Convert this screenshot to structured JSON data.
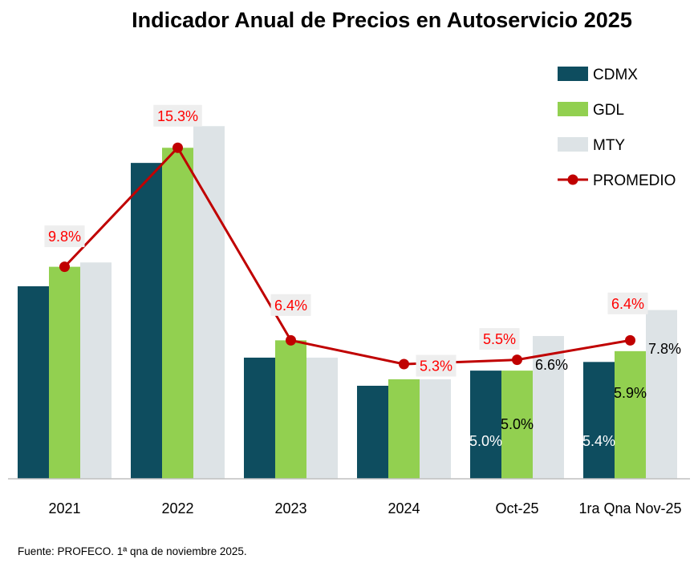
{
  "chart_data": {
    "type": "bar",
    "title": "Indicador Anual de Precios en Autoservicio 2025",
    "categories": [
      "2021",
      "2022",
      "2023",
      "2024",
      "Oct-25",
      "1ra Qna Nov-25"
    ],
    "series": [
      {
        "name": "CDMX",
        "type": "bar",
        "color": "#0e4d5f",
        "values": [
          8.9,
          14.6,
          5.6,
          4.3,
          5.0,
          5.4
        ],
        "labels": [
          null,
          null,
          null,
          null,
          "5.0%",
          "5.4%"
        ]
      },
      {
        "name": "GDL",
        "type": "bar",
        "color": "#92d050",
        "values": [
          9.8,
          15.3,
          6.4,
          4.6,
          5.0,
          5.9
        ],
        "labels": [
          null,
          null,
          null,
          null,
          "5.0%",
          "5.9%"
        ]
      },
      {
        "name": "MTY",
        "type": "bar",
        "color": "#dde3e6",
        "values": [
          10.0,
          16.3,
          5.6,
          4.6,
          6.6,
          7.8
        ],
        "labels": [
          null,
          null,
          null,
          null,
          "6.6%",
          "7.8%"
        ]
      },
      {
        "name": "PROMEDIO",
        "type": "line",
        "color": "#c00000",
        "values": [
          9.8,
          15.3,
          6.4,
          5.3,
          5.5,
          6.4
        ],
        "labels": [
          "9.8%",
          "15.3%",
          "6.4%",
          "5.3%",
          "5.5%",
          "6.4%"
        ]
      }
    ],
    "ylim": [
      0,
      17.2
    ],
    "grid": false,
    "legend_position": "top-right",
    "source": "Fuente: PROFECO. 1ª qna de noviembre 2025."
  }
}
